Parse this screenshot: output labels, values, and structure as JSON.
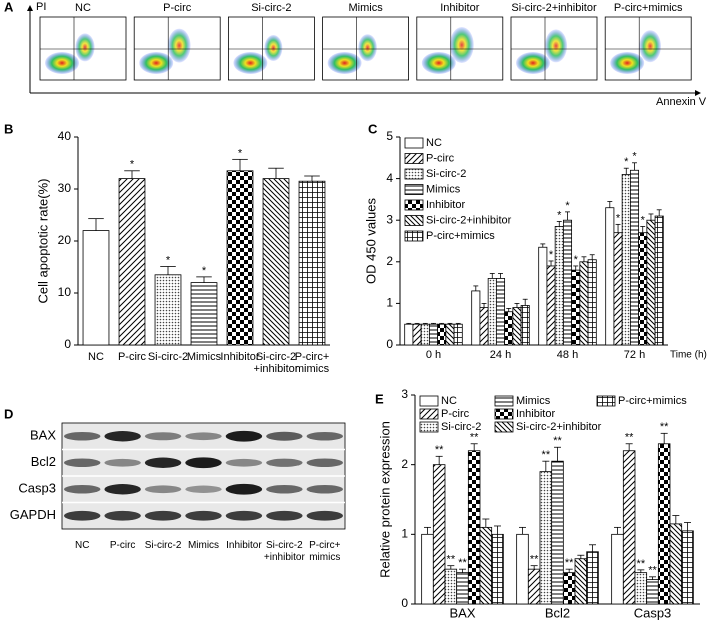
{
  "flow": {
    "panel_label": "A",
    "y_axis": "PI",
    "x_axis": "Annexin V",
    "samples": [
      "NC",
      "P-circ",
      "Si-circ-2",
      "Mimics",
      "Inhibitor",
      "Si-circ-2+inhibitor",
      "P-circ+mimics"
    ]
  },
  "blot": {
    "panel_label": "D",
    "rows": [
      "BAX",
      "Bcl2",
      "Casp3",
      "GAPDH"
    ],
    "lanes": [
      "NC",
      "P-circ",
      "Si-circ-2",
      "Mimics",
      "Inhibitor",
      "Si-circ-2\n+inhibitor",
      "P-circ+\nmimics"
    ]
  },
  "chart_data": [
    {
      "type": "bar",
      "panel_label": "B",
      "ylabel": "Cell apoptotic rate(%)",
      "categories": [
        "NC",
        "P-circ",
        "Si-circ-2",
        "Mimics",
        "Inhibitor",
        "Si-circ-2\n+inhibitor",
        "P-circ+\nmimics"
      ],
      "values": [
        22,
        32,
        13.5,
        12,
        33.5,
        32,
        31.5
      ],
      "errors": [
        2.3,
        1.5,
        1.6,
        1.1,
        2.2,
        2,
        1
      ],
      "annotations": [
        null,
        "*",
        "*",
        "*",
        "*",
        null,
        null
      ],
      "ylim": [
        0,
        40
      ],
      "yticks": [
        0,
        10,
        20,
        30,
        40
      ]
    },
    {
      "type": "grouped_bar",
      "panel_label": "C",
      "ylabel": "OD 450 values",
      "xlabel": "Time (h)",
      "categories": [
        "0 h",
        "24 h",
        "48 h",
        "72 h"
      ],
      "series": [
        {
          "name": "NC",
          "values": [
            0.5,
            1.3,
            2.35,
            3.3
          ],
          "errors": [
            0.02,
            0.12,
            0.08,
            0.15
          ],
          "annotations": [
            null,
            null,
            null,
            null
          ]
        },
        {
          "name": "P-circ",
          "values": [
            0.5,
            0.9,
            1.9,
            2.7
          ],
          "errors": [
            0.02,
            0.1,
            0.12,
            0.2
          ],
          "annotations": [
            null,
            null,
            "*",
            "*"
          ]
        },
        {
          "name": "Si-circ-2",
          "values": [
            0.5,
            1.6,
            2.85,
            4.1
          ],
          "errors": [
            0.02,
            0.12,
            0.12,
            0.15
          ],
          "annotations": [
            null,
            null,
            "*",
            "*"
          ]
        },
        {
          "name": "Mimics",
          "values": [
            0.5,
            1.6,
            3.0,
            4.2
          ],
          "errors": [
            0.02,
            0.12,
            0.2,
            0.18
          ],
          "annotations": [
            null,
            null,
            "*",
            "*"
          ]
        },
        {
          "name": "Inhibitor",
          "values": [
            0.5,
            0.8,
            1.8,
            2.7
          ],
          "errors": [
            0.02,
            0.08,
            0.1,
            0.15
          ],
          "annotations": [
            null,
            null,
            "*",
            "*"
          ]
        },
        {
          "name": "Si-circ-2+inhibitor",
          "values": [
            0.5,
            0.9,
            2.0,
            3.0
          ],
          "errors": [
            0.02,
            0.1,
            0.12,
            0.15
          ],
          "annotations": [
            null,
            null,
            null,
            null
          ]
        },
        {
          "name": "P-circ+mimics",
          "values": [
            0.5,
            0.95,
            2.05,
            3.1
          ],
          "errors": [
            0.02,
            0.15,
            0.12,
            0.15
          ],
          "annotations": [
            null,
            null,
            null,
            null
          ]
        }
      ],
      "ylim": [
        0,
        5
      ],
      "yticks": [
        0,
        1,
        2,
        3,
        4,
        5
      ],
      "legend": "top-left",
      "legend_columns": 1
    },
    {
      "type": "grouped_bar",
      "panel_label": "E",
      "ylabel": "Relative protein expression",
      "categories": [
        "BAX",
        "Bcl2",
        "Casp3"
      ],
      "series": [
        {
          "name": "NC",
          "values": [
            1.0,
            1.0,
            1.0
          ],
          "errors": [
            0.1,
            0.1,
            0.1
          ],
          "annotations": [
            null,
            null,
            null
          ]
        },
        {
          "name": "P-circ",
          "values": [
            2.0,
            0.5,
            2.2
          ],
          "errors": [
            0.12,
            0.05,
            0.1
          ],
          "annotations": [
            "**",
            "**",
            "**"
          ]
        },
        {
          "name": "Si-circ-2",
          "values": [
            0.5,
            1.9,
            0.45
          ],
          "errors": [
            0.05,
            0.15,
            0.04
          ],
          "annotations": [
            "**",
            "**",
            "**"
          ]
        },
        {
          "name": "Mimics",
          "values": [
            0.45,
            2.05,
            0.35
          ],
          "errors": [
            0.05,
            0.2,
            0.04
          ],
          "annotations": [
            "**",
            "**",
            "**"
          ]
        },
        {
          "name": "Inhibitor",
          "values": [
            2.2,
            0.45,
            2.3
          ],
          "errors": [
            0.1,
            0.05,
            0.15
          ],
          "annotations": [
            "**",
            "**",
            "**"
          ]
        },
        {
          "name": "Si-circ-2+inhibitor",
          "values": [
            1.1,
            0.65,
            1.15
          ],
          "errors": [
            0.12,
            0.05,
            0.12
          ],
          "annotations": [
            null,
            null,
            null
          ]
        },
        {
          "name": "P-circ+mimics",
          "values": [
            1.0,
            0.75,
            1.05
          ],
          "errors": [
            0.12,
            0.1,
            0.12
          ],
          "annotations": [
            null,
            null,
            null
          ]
        }
      ],
      "ylim": [
        0,
        3
      ],
      "yticks": [
        0,
        1,
        2,
        3
      ],
      "legend": "top",
      "legend_columns": 3
    }
  ]
}
